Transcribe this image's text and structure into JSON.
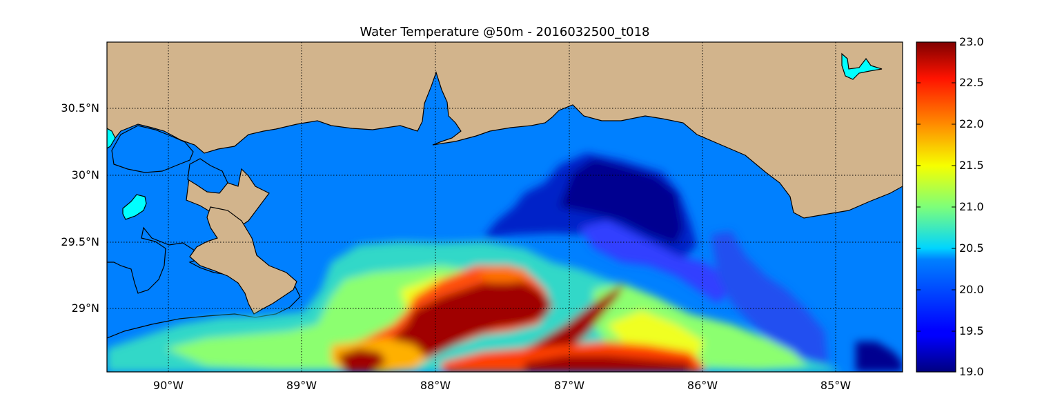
{
  "map": {
    "title": "Water Temperature @50m - 2016032500_t018",
    "lat_labels": [
      "30.5°N",
      "30°N",
      "29.5°N",
      "29°N"
    ],
    "lon_labels": [
      "90°W",
      "89°W",
      "88°W",
      "87°W",
      "86°W",
      "85°W"
    ],
    "lat_values": [
      30.5,
      30.0,
      29.5,
      29.0
    ],
    "lon_values": [
      -90,
      -89,
      -88,
      -87,
      -86,
      -85
    ],
    "extent": {
      "lon_min": -90.47,
      "lon_max": -84.5,
      "lat_min": 28.53,
      "lat_max": 31.0
    },
    "colors": {
      "land": "#d2b48c",
      "ocean_fill": "#0080ff",
      "lakes": "#00ffff",
      "coastline": "#000000",
      "grid": "#000000"
    }
  },
  "colorbar": {
    "colormap": "jet",
    "min": 19.0,
    "max": 23.0,
    "tick_labels": [
      "23.0",
      "22.5",
      "22.0",
      "21.5",
      "21.0",
      "20.5",
      "20.0",
      "19.5",
      "19.0"
    ],
    "tick_values": [
      23.0,
      22.5,
      22.0,
      21.5,
      21.0,
      20.5,
      20.0,
      19.5,
      19.0
    ]
  }
}
